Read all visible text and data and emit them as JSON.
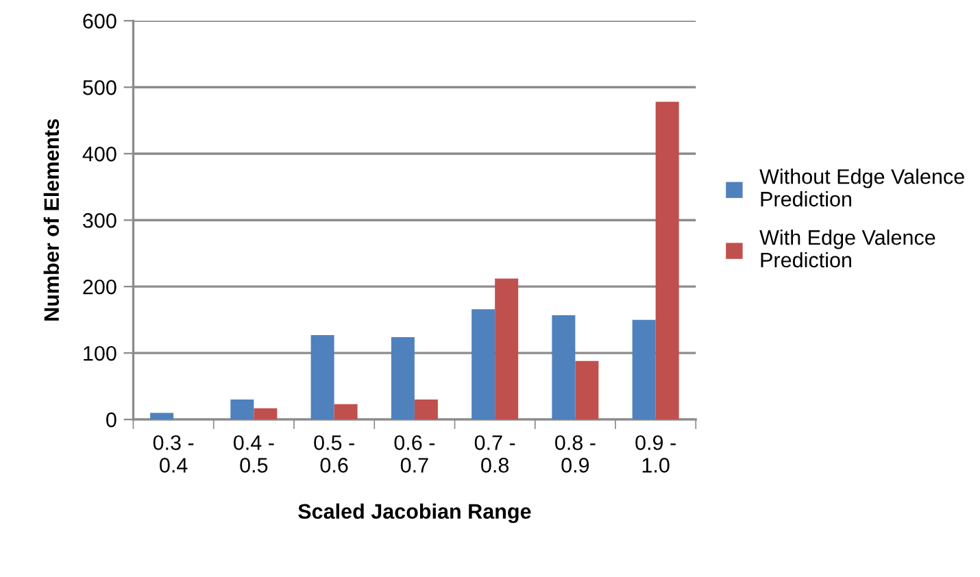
{
  "chart_data": {
    "type": "bar",
    "xlabel": "Scaled Jacobian Range",
    "ylabel": "Number of Elements",
    "categories": [
      "0.3 - 0.4",
      "0.4 - 0.5",
      "0.5 - 0.6",
      "0.6 - 0.7",
      "0.7 - 0.8",
      "0.8 - 0.9",
      "0.9 - 1.0"
    ],
    "series": [
      {
        "name": "Without Edge Valence Prediction",
        "color": "#4f81bd",
        "values": [
          10,
          30,
          127,
          124,
          166,
          157,
          150
        ]
      },
      {
        "name": "With Edge Valence Prediction",
        "color": "#c0504d",
        "values": [
          0,
          17,
          23,
          30,
          212,
          88,
          478
        ]
      }
    ],
    "ylim": [
      0,
      600
    ],
    "yticks": [
      0,
      100,
      200,
      300,
      400,
      500,
      600
    ],
    "grid": "y",
    "legend": "right"
  }
}
